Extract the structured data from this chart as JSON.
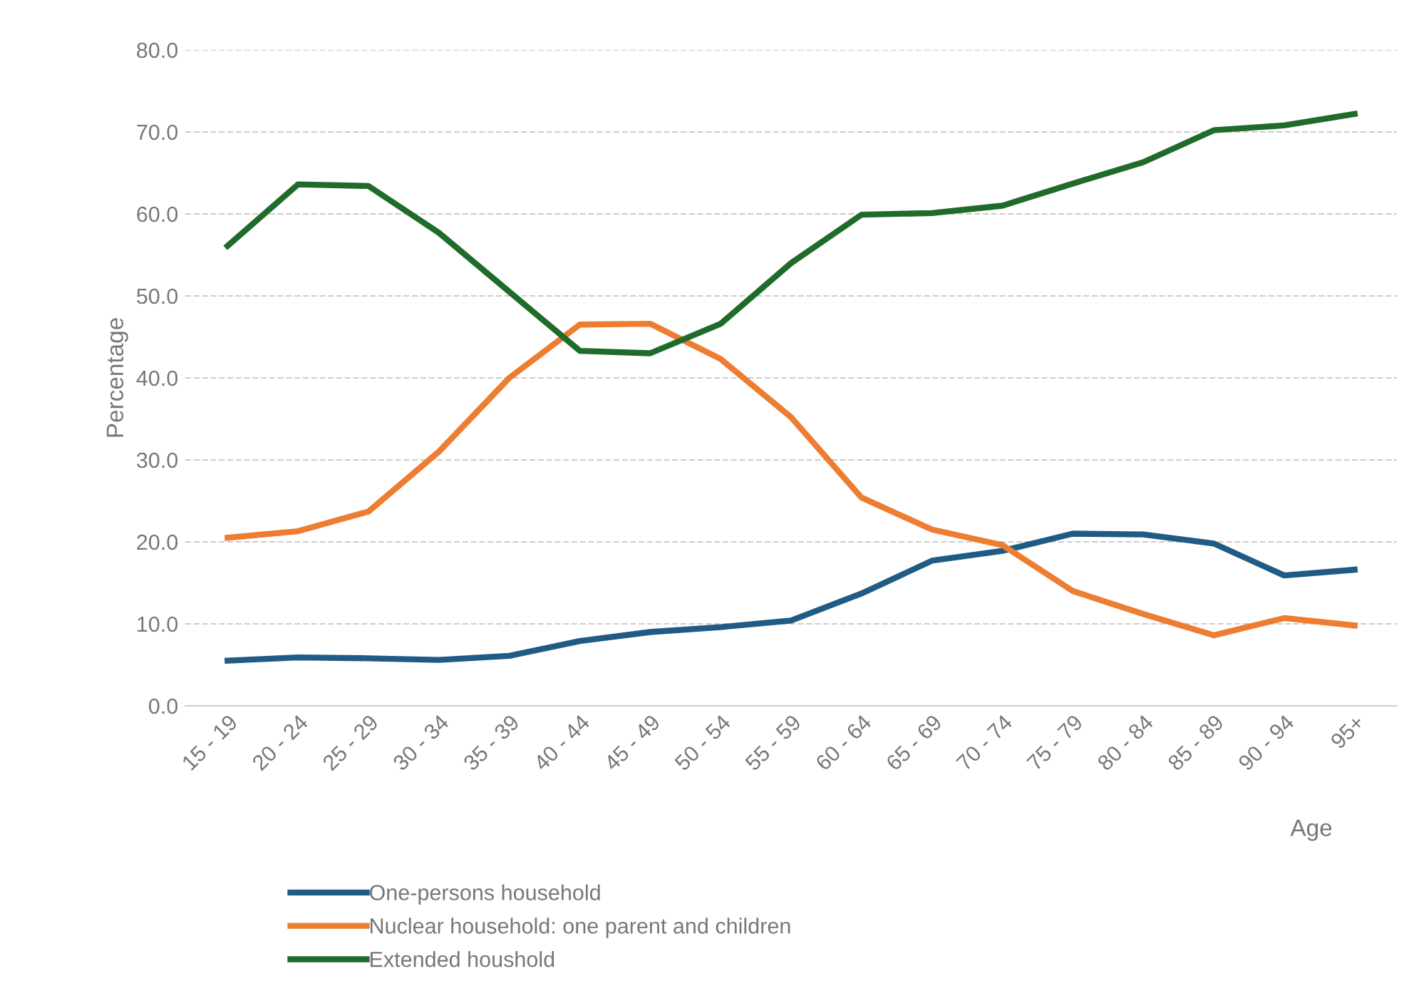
{
  "chart_data": {
    "type": "line",
    "xlabel": "Age",
    "ylabel": "Percentage",
    "categories": [
      "15 - 19",
      "20 - 24",
      "25 - 29",
      "30 - 34",
      "35 - 39",
      "40 - 44",
      "45 - 49",
      "50 - 54",
      "55 - 59",
      "60 - 64",
      "65 - 69",
      "70 - 74",
      "75 - 79",
      "80 - 84",
      "85 - 89",
      "90 - 94",
      "95+"
    ],
    "series": [
      {
        "name": "One-persons household",
        "color": "#1f5b84",
        "values": [
          5.5,
          5.9,
          5.8,
          5.6,
          6.1,
          7.9,
          9.0,
          9.6,
          10.4,
          13.7,
          17.7,
          18.9,
          21.0,
          20.9,
          19.8,
          15.9,
          16.6
        ]
      },
      {
        "name": "Nuclear household: one parent and children",
        "color": "#ed7d31",
        "values": [
          20.5,
          21.3,
          23.7,
          31.0,
          40.0,
          46.5,
          46.6,
          42.3,
          35.2,
          25.4,
          21.5,
          19.6,
          14.0,
          11.2,
          8.6,
          10.7,
          9.8
        ]
      },
      {
        "name": "Extended houshold",
        "color": "#1e6b2a",
        "values": [
          56.1,
          63.6,
          63.4,
          57.7,
          50.5,
          43.3,
          43.0,
          46.6,
          54.0,
          59.9,
          60.1,
          61.0,
          63.7,
          66.3,
          70.2,
          70.8,
          72.2
        ]
      }
    ],
    "ylim": [
      0,
      80
    ],
    "yticks": [
      {
        "value": 0,
        "label": "0.0"
      },
      {
        "value": 10,
        "label": "10.0"
      },
      {
        "value": 20,
        "label": "20.0"
      },
      {
        "value": 30,
        "label": "30.0"
      },
      {
        "value": 40,
        "label": "40.0"
      },
      {
        "value": 50,
        "label": "50.0"
      },
      {
        "value": 60,
        "label": "60.0"
      },
      {
        "value": 70,
        "label": "70.0"
      },
      {
        "value": 80,
        "label": "80.0"
      }
    ],
    "grid": "y",
    "legend": "bottom left",
    "marker": "none",
    "line_style": "solid"
  }
}
